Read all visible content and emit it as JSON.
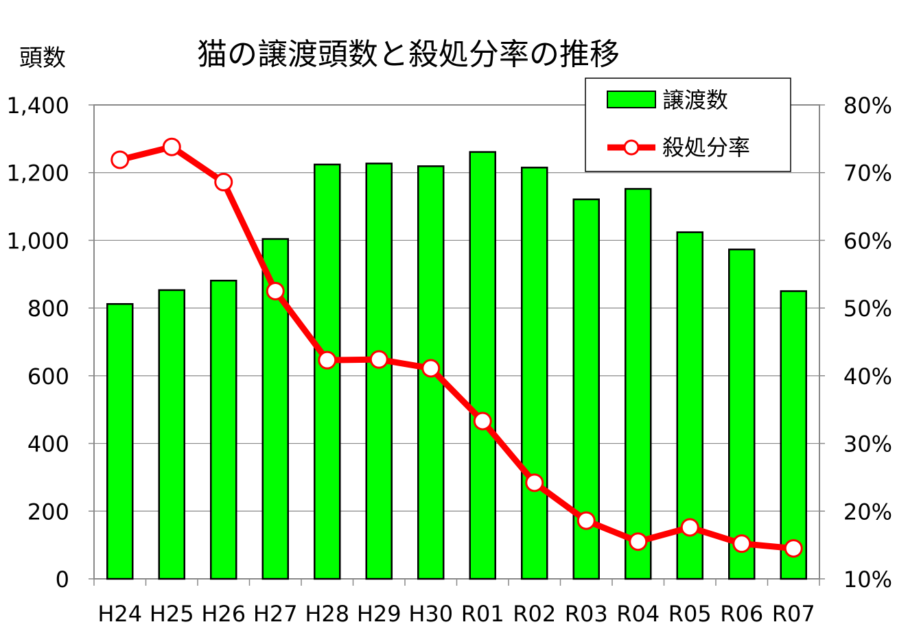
{
  "chart_data": {
    "type": "bar+line",
    "title": "猫の譲渡頭数と殺処分率の推移",
    "ylabel_left": "頭数",
    "ylabel_right": "",
    "categories": [
      "H24",
      "H25",
      "H26",
      "H27",
      "H28",
      "H29",
      "H30",
      "R01",
      "R02",
      "R03",
      "R04",
      "R05",
      "R06",
      "R07"
    ],
    "left_axis": {
      "min": 0,
      "max": 1400,
      "step": 200,
      "tick_labels": [
        "0",
        "200",
        "400",
        "600",
        "800",
        "1,000",
        "1,200",
        "1,400"
      ]
    },
    "right_axis": {
      "min": 10,
      "max": 80,
      "step": 10,
      "tick_labels": [
        "10%",
        "20%",
        "30%",
        "40%",
        "50%",
        "60%",
        "70%",
        "80%"
      ]
    },
    "grid": true,
    "legend_position": "top-right",
    "series": [
      {
        "name": "譲渡数",
        "type": "bar",
        "axis": "left",
        "color": "#00ff00",
        "values": [
          812,
          853,
          881,
          1004,
          1224,
          1227,
          1219,
          1261,
          1215,
          1121,
          1152,
          1024,
          973,
          850
        ]
      },
      {
        "name": "殺処分率",
        "type": "line",
        "axis": "right",
        "color": "#ff0000",
        "values": [
          71.9,
          73.8,
          68.6,
          52.5,
          42.3,
          42.4,
          41.1,
          33.3,
          24.2,
          18.6,
          15.5,
          17.6,
          15.2,
          14.5
        ]
      }
    ]
  }
}
